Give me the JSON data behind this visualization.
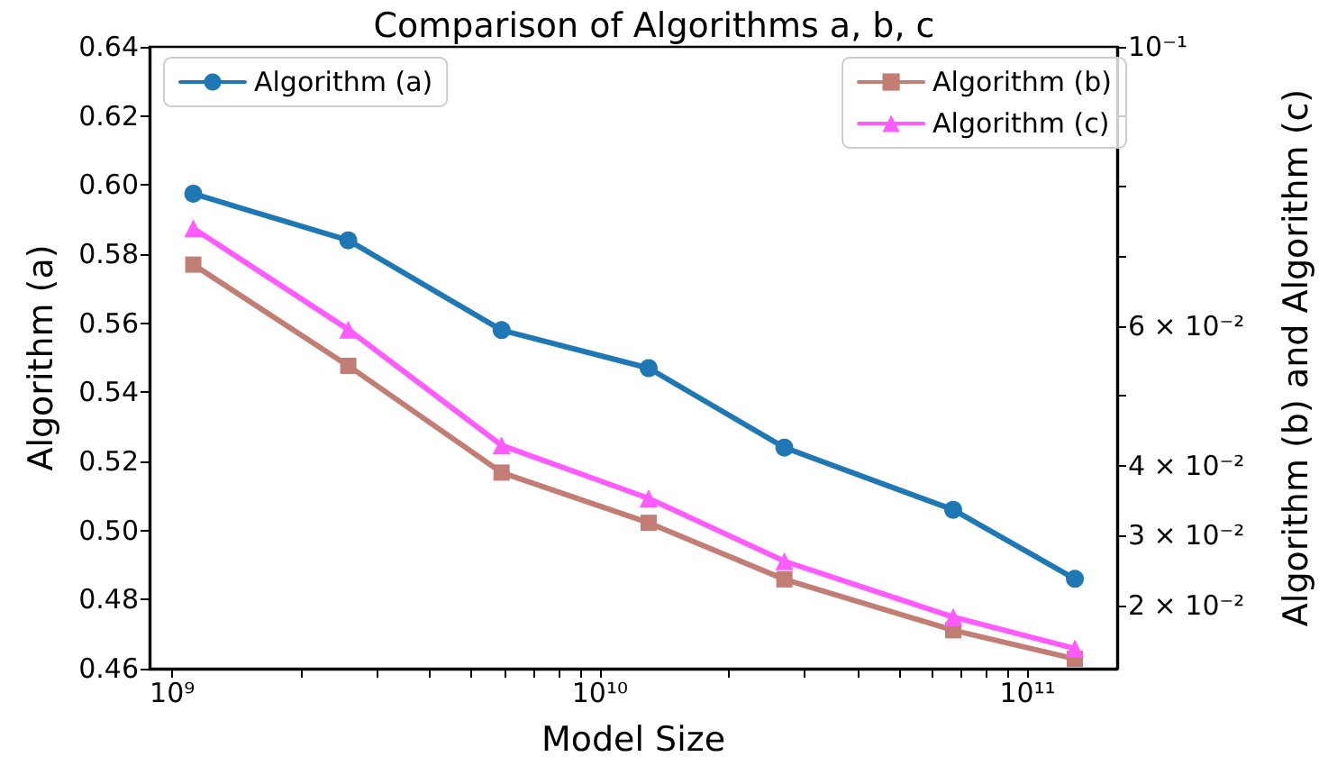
{
  "chart_data": {
    "type": "line",
    "title": "Comparison of Algorithms a, b, c",
    "xlabel": "Model Size",
    "ylabel": "Algorithm (a)",
    "y2label": "Algorithm (b) and Algorithm (c)",
    "x": [
      1120000000.0,
      2580000000.0,
      5890000000.0,
      13000000000.0,
      27000000000.0,
      67000000000.0,
      129000000000.0
    ],
    "series": [
      {
        "name": "Algorithm (a)",
        "color": "#1f77b4",
        "marker": "circle",
        "values": [
          0.5975,
          0.584,
          0.558,
          0.547,
          0.524,
          0.506,
          0.486
        ]
      },
      {
        "name": "Algorithm (b)",
        "color": "#c27d74",
        "marker": "square",
        "axis": "y2",
        "values": [
          0.0688,
          0.0543,
          0.039,
          0.0318,
          0.0237,
          0.0164,
          0.0123
        ]
      },
      {
        "name": "Algorithm (c)",
        "color": "#ff5cff",
        "marker": "triangle",
        "axis": "y2",
        "values": [
          0.074,
          0.0595,
          0.0429,
          0.0353,
          0.0263,
          0.0183,
          0.0138
        ]
      }
    ],
    "log": "x",
    "xlim": [
      885000000.0,
      162000000000.0
    ],
    "xticks": [
      {
        "value": 1000000000.0,
        "label": "10⁹"
      },
      {
        "value": 2000000000.0,
        "label": null
      },
      {
        "value": 3000000000.0,
        "label": null
      },
      {
        "value": 4000000000.0,
        "label": null
      },
      {
        "value": 5000000000.0,
        "label": null
      },
      {
        "value": 6000000000.0,
        "label": null
      },
      {
        "value": 7000000000.0,
        "label": null
      },
      {
        "value": 8000000000.0,
        "label": null
      },
      {
        "value": 9000000000.0,
        "label": null
      },
      {
        "value": 10000000000.0,
        "label": "10¹⁰"
      },
      {
        "value": 20000000000.0,
        "label": null
      },
      {
        "value": 30000000000.0,
        "label": null
      },
      {
        "value": 40000000000.0,
        "label": null
      },
      {
        "value": 50000000000.0,
        "label": null
      },
      {
        "value": 60000000000.0,
        "label": null
      },
      {
        "value": 70000000000.0,
        "label": null
      },
      {
        "value": 80000000000.0,
        "label": null
      },
      {
        "value": 90000000000.0,
        "label": null
      },
      {
        "value": 100000000000.0,
        "label": "10¹¹"
      }
    ],
    "ylim": [
      0.46,
      0.64
    ],
    "yticks": [
      {
        "value": 0.46,
        "label": "0.46"
      },
      {
        "value": 0.48,
        "label": "0.48"
      },
      {
        "value": 0.5,
        "label": "0.50"
      },
      {
        "value": 0.52,
        "label": "0.52"
      },
      {
        "value": 0.54,
        "label": "0.54"
      },
      {
        "value": 0.56,
        "label": "0.56"
      },
      {
        "value": 0.58,
        "label": "0.58"
      },
      {
        "value": 0.6,
        "label": "0.60"
      },
      {
        "value": 0.62,
        "label": "0.62"
      },
      {
        "value": 0.64,
        "label": "0.64"
      }
    ],
    "y2lim": [
      0.0109,
      0.1
    ],
    "y2ticks": [
      {
        "value": 0.02,
        "label": "2 × 10⁻²"
      },
      {
        "value": 0.03,
        "label": "3 × 10⁻²"
      },
      {
        "value": 0.04,
        "label": "4 × 10⁻²"
      },
      {
        "value": 0.05,
        "label": null
      },
      {
        "value": 0.06,
        "label": "6 × 10⁻²"
      },
      {
        "value": 0.07,
        "label": null
      },
      {
        "value": 0.08,
        "label": null
      },
      {
        "value": 0.09,
        "label": null
      },
      {
        "value": 0.1,
        "label": "10⁻¹"
      }
    ],
    "grid": false,
    "legend": "top",
    "line_style": "solid"
  }
}
